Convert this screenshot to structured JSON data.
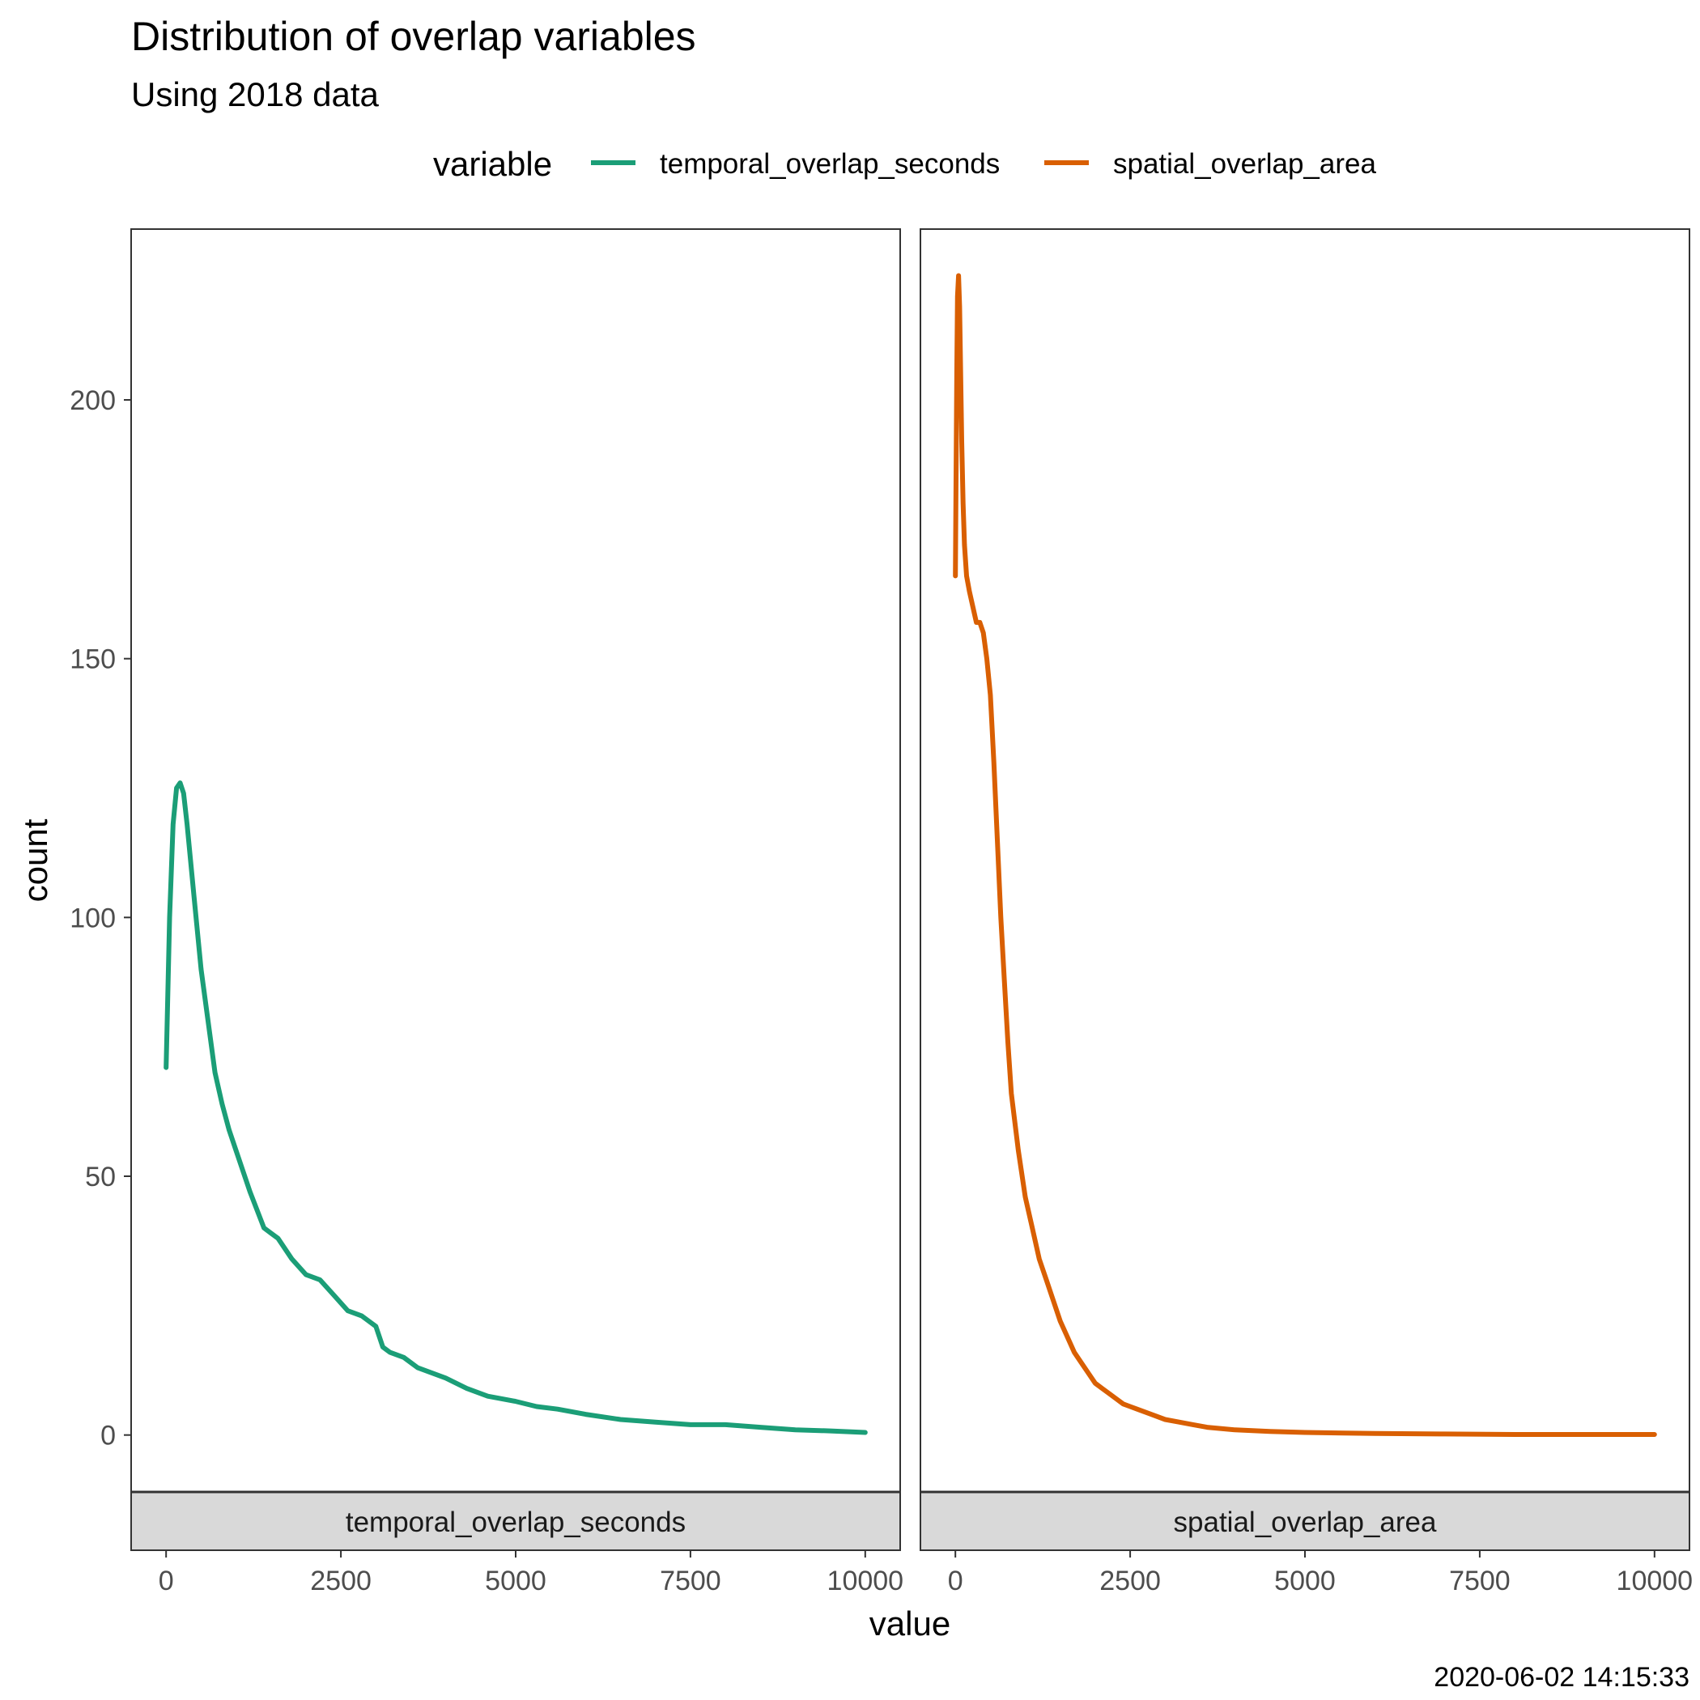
{
  "title": "Distribution of overlap variables",
  "subtitle": "Using 2018 data",
  "caption": "2020-06-02 14:15:33",
  "legend": {
    "title": "variable",
    "placement": "top",
    "entries": [
      {
        "label": "temporal_overlap_seconds",
        "color": "#1b9e77"
      },
      {
        "label": "spatial_overlap_area",
        "color": "#d95f02"
      }
    ]
  },
  "chart_data": {
    "type": "line",
    "facets": [
      "temporal_overlap_seconds",
      "spatial_overlap_area"
    ],
    "xlabel": "value",
    "ylabel": "count",
    "xlim": [
      -500,
      10500
    ],
    "ylim": [
      -11,
      233
    ],
    "x_ticks": [
      0,
      2500,
      5000,
      7500,
      10000
    ],
    "x_tick_labels": [
      "0",
      "2500",
      "5000",
      "7500",
      "10000"
    ],
    "y_ticks": [
      0,
      50,
      100,
      150,
      200
    ],
    "y_tick_labels": [
      "0",
      "50",
      "100",
      "150",
      "200"
    ],
    "grid": false,
    "series": [
      {
        "name": "temporal_overlap_seconds",
        "facet": "temporal_overlap_seconds",
        "color": "#1b9e77",
        "x": [
          0,
          50,
          100,
          150,
          200,
          250,
          300,
          400,
          500,
          600,
          700,
          800,
          900,
          1000,
          1200,
          1400,
          1500,
          1600,
          1800,
          2000,
          2200,
          2400,
          2600,
          2800,
          2900,
          3000,
          3100,
          3200,
          3400,
          3600,
          4000,
          4300,
          4600,
          5000,
          5300,
          5600,
          6000,
          6500,
          7000,
          7500,
          7700,
          8000,
          8500,
          9000,
          9500,
          10000
        ],
        "y": [
          71,
          100,
          118,
          125,
          126,
          124,
          118,
          104,
          90,
          80,
          70,
          64,
          59,
          55,
          47,
          40,
          39,
          38,
          34,
          31,
          30,
          27,
          24,
          23,
          22,
          21,
          17,
          16,
          15,
          13,
          11,
          9,
          7.5,
          6.5,
          5.5,
          5,
          4,
          3,
          2.5,
          2,
          2,
          2,
          1.5,
          1,
          0.8,
          0.5
        ]
      },
      {
        "name": "spatial_overlap_area",
        "facet": "spatial_overlap_area",
        "color": "#d95f02",
        "x": [
          0,
          10,
          20,
          30,
          45,
          60,
          75,
          90,
          110,
          130,
          160,
          200,
          250,
          300,
          350,
          400,
          450,
          500,
          550,
          600,
          650,
          700,
          750,
          800,
          900,
          1000,
          1100,
          1200,
          1300,
          1400,
          1500,
          1600,
          1700,
          1800,
          1900,
          2000,
          2100,
          2200,
          2300,
          2400,
          2500,
          2600,
          2800,
          3000,
          3200,
          3400,
          3600,
          4000,
          4500,
          5000,
          6000,
          7000,
          8000,
          9000,
          10000
        ],
        "y": [
          166,
          185,
          205,
          220,
          224,
          218,
          205,
          192,
          180,
          172,
          166,
          163,
          160,
          157,
          157,
          155,
          150,
          143,
          130,
          115,
          100,
          88,
          76,
          66,
          55,
          46,
          40,
          34,
          30,
          26,
          22,
          19,
          16,
          14,
          12,
          10,
          9,
          8,
          7,
          6,
          5.5,
          5,
          4,
          3,
          2.5,
          2,
          1.5,
          1,
          0.7,
          0.5,
          0.3,
          0.2,
          0.1,
          0.1,
          0.1
        ]
      }
    ]
  }
}
